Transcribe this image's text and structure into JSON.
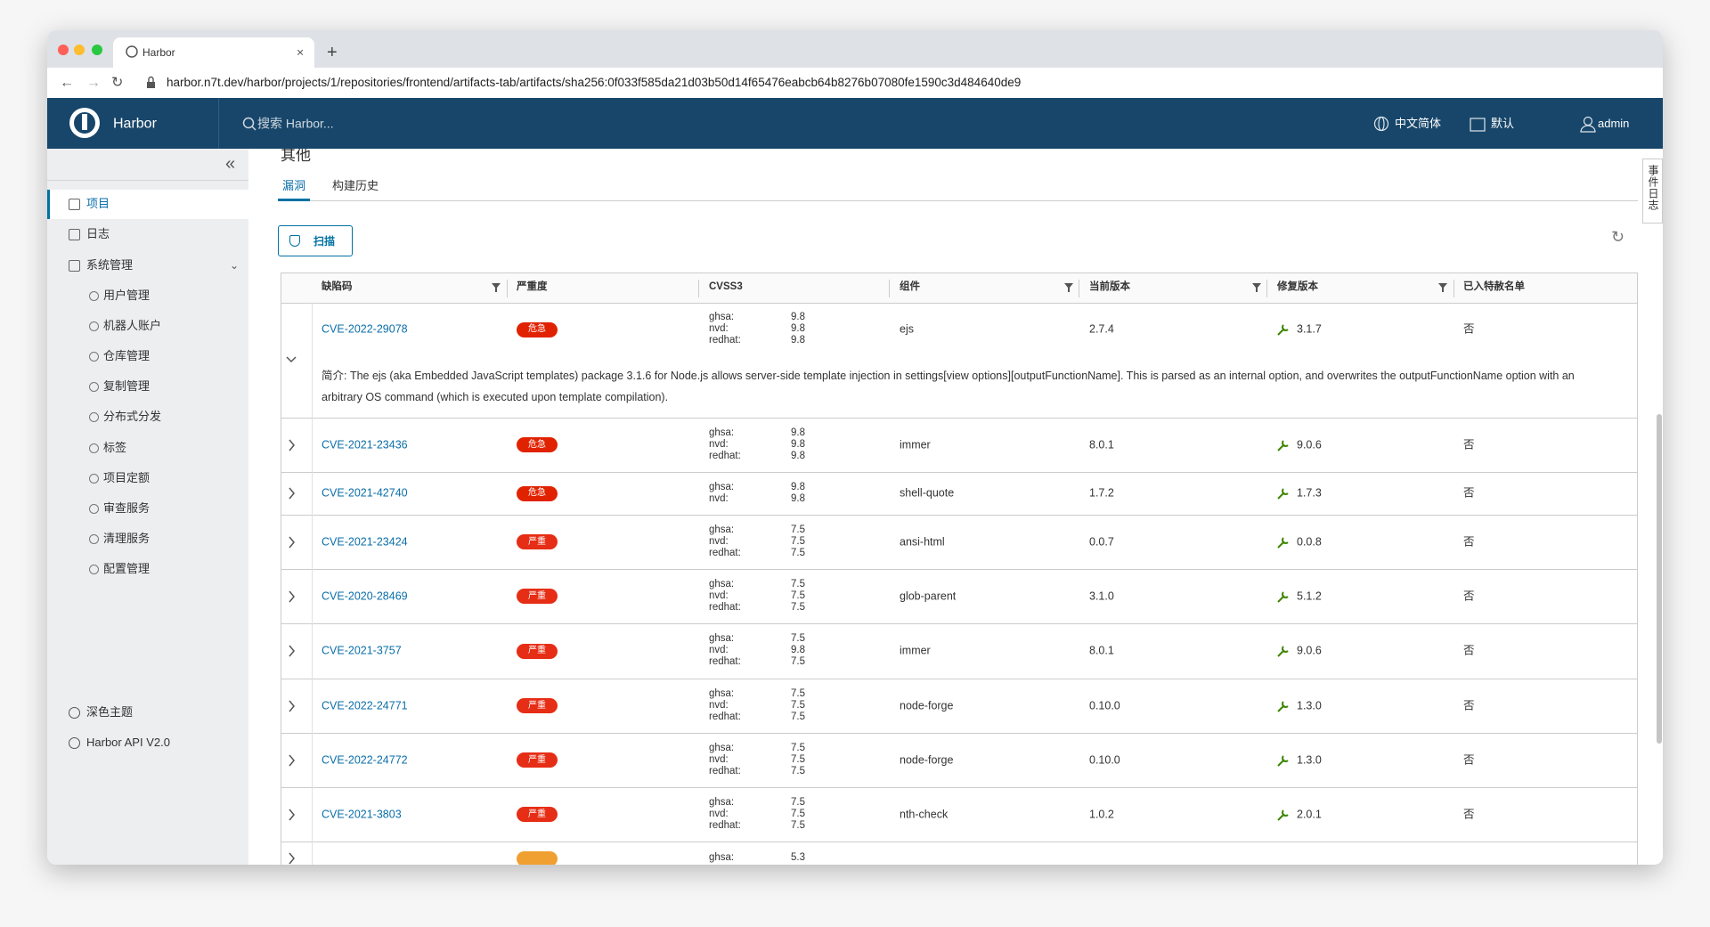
{
  "browser": {
    "tab_title": "Harbor",
    "url": "harbor.n7t.dev/harbor/projects/1/repositories/frontend/artifacts-tab/artifacts/sha256:0f033f585da21d03b50d14f65476eabcb64b8276b07080fe1590c3d484640de9"
  },
  "header": {
    "brand": "Harbor",
    "search_placeholder": "搜索 Harbor...",
    "language": "中文简体",
    "datetime_format": "默认",
    "user": "admin"
  },
  "sidebar": {
    "items": [
      "项目",
      "日志",
      "系统管理"
    ],
    "admin_items": [
      "用户管理",
      "机器人账户",
      "仓库管理",
      "复制管理",
      "分布式分发",
      "标签",
      "项目定额",
      "审查服务",
      "清理服务",
      "配置管理"
    ],
    "footer": [
      "深色主题",
      "Harbor API V2.0"
    ]
  },
  "side_panel": "事件日志",
  "content": {
    "section_title": "其他",
    "tabs": [
      "漏洞",
      "构建历史"
    ],
    "scan_button": "扫描",
    "table": {
      "columns": [
        "缺陷码",
        "严重度",
        "CVSS3",
        "组件",
        "当前版本",
        "修复版本",
        "已入特赦名单"
      ],
      "rows": [
        {
          "cve": "CVE-2022-29078",
          "severity": "危急",
          "badge_color": "#e12200",
          "cvss": [
            {
              "source": "ghsa:",
              "score": 9.8
            },
            {
              "source": "nvd:",
              "score": 9.8
            },
            {
              "source": "redhat:",
              "score": 9.8
            }
          ],
          "component": "ejs",
          "current_version": "2.7.4",
          "fixed_version": "3.1.7",
          "allowlisted": "否",
          "description": "简介: The ejs (aka Embedded JavaScript templates) package 3.1.6 for Node.js allows server-side template injection in settings[view options][outputFunctionName]. This is parsed as an internal option, and overwrites the outputFunctionName option with an arbitrary OS command (which is executed upon template compilation)."
        },
        {
          "cve": "CVE-2021-23436",
          "severity": "危急",
          "badge_color": "#e12200",
          "cvss": [
            {
              "source": "ghsa:",
              "score": 9.8
            },
            {
              "source": "nvd:",
              "score": 9.8
            },
            {
              "source": "redhat:",
              "score": 9.8
            }
          ],
          "component": "immer",
          "current_version": "8.0.1",
          "fixed_version": "9.0.6",
          "allowlisted": "否"
        },
        {
          "cve": "CVE-2021-42740",
          "severity": "危急",
          "badge_color": "#e12200",
          "cvss": [
            {
              "source": "ghsa:",
              "score": 9.8
            },
            {
              "source": "nvd:",
              "score": 9.8
            }
          ],
          "component": "shell-quote",
          "current_version": "1.7.2",
          "fixed_version": "1.7.3",
          "allowlisted": "否"
        },
        {
          "cve": "CVE-2021-23424",
          "severity": "严重",
          "badge_color": "#e62d15",
          "cvss": [
            {
              "source": "ghsa:",
              "score": 7.5
            },
            {
              "source": "nvd:",
              "score": 7.5
            },
            {
              "source": "redhat:",
              "score": 7.5
            }
          ],
          "component": "ansi-html",
          "current_version": "0.0.7",
          "fixed_version": "0.0.8",
          "allowlisted": "否"
        },
        {
          "cve": "CVE-2020-28469",
          "severity": "严重",
          "badge_color": "#e62d15",
          "cvss": [
            {
              "source": "ghsa:",
              "score": 7.5
            },
            {
              "source": "nvd:",
              "score": 7.5
            },
            {
              "source": "redhat:",
              "score": 7.5
            }
          ],
          "component": "glob-parent",
          "current_version": "3.1.0",
          "fixed_version": "5.1.2",
          "allowlisted": "否"
        },
        {
          "cve": "CVE-2021-3757",
          "severity": "严重",
          "badge_color": "#e62d15",
          "cvss": [
            {
              "source": "ghsa:",
              "score": 7.5
            },
            {
              "source": "nvd:",
              "score": 9.8
            },
            {
              "source": "redhat:",
              "score": 7.5
            }
          ],
          "component": "immer",
          "current_version": "8.0.1",
          "fixed_version": "9.0.6",
          "allowlisted": "否"
        },
        {
          "cve": "CVE-2022-24771",
          "severity": "严重",
          "badge_color": "#e62d15",
          "cvss": [
            {
              "source": "ghsa:",
              "score": 7.5
            },
            {
              "source": "nvd:",
              "score": 7.5
            },
            {
              "source": "redhat:",
              "score": 7.5
            }
          ],
          "component": "node-forge",
          "current_version": "0.10.0",
          "fixed_version": "1.3.0",
          "allowlisted": "否"
        },
        {
          "cve": "CVE-2022-24772",
          "severity": "严重",
          "badge_color": "#e62d15",
          "cvss": [
            {
              "source": "ghsa:",
              "score": 7.5
            },
            {
              "source": "nvd:",
              "score": 7.5
            },
            {
              "source": "redhat:",
              "score": 7.5
            }
          ],
          "component": "node-forge",
          "current_version": "0.10.0",
          "fixed_version": "1.3.0",
          "allowlisted": "否"
        },
        {
          "cve": "CVE-2021-3803",
          "severity": "严重",
          "badge_color": "#e62d15",
          "cvss": [
            {
              "source": "ghsa:",
              "score": 7.5
            },
            {
              "source": "nvd:",
              "score": 7.5
            },
            {
              "source": "redhat:",
              "score": 7.5
            }
          ],
          "component": "nth-check",
          "current_version": "1.0.2",
          "fixed_version": "2.0.1",
          "allowlisted": "否"
        },
        {
          "badge_color": "#f0a030",
          "cvss": [
            {
              "source": "ghsa:",
              "score": 5.3
            }
          ]
        }
      ]
    }
  }
}
